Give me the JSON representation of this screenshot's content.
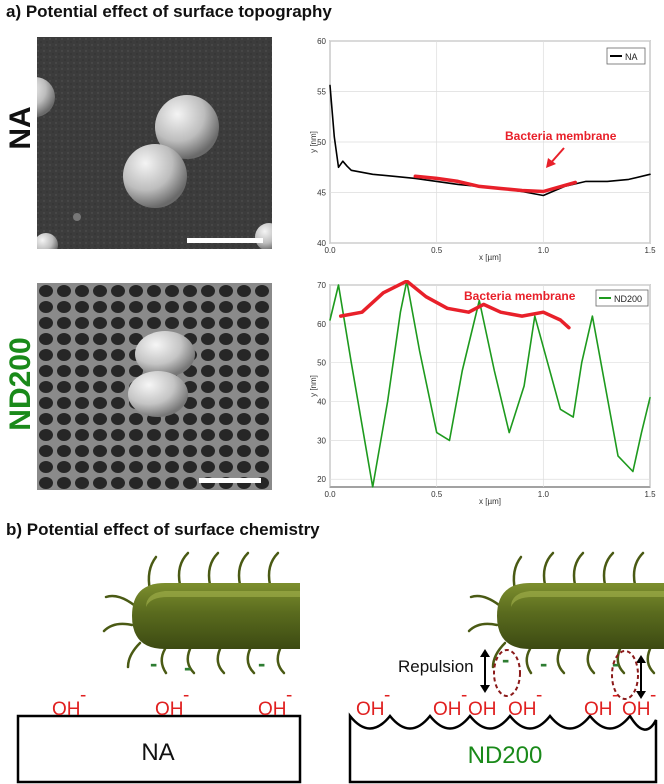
{
  "section_a": {
    "title": "a) Potential effect of surface topography"
  },
  "section_b": {
    "title": "b) Potential effect of surface chemistry"
  },
  "rows": [
    {
      "label": "NA",
      "color": "#111111"
    },
    {
      "label": "ND200",
      "color": "#1a8a1a"
    }
  ],
  "colors": {
    "profile_na": "#000000",
    "profile_nd200": "#1e9a1e",
    "membrane": "#e8202a",
    "bacteria": "#5a6b1e",
    "oh": "#e02020",
    "neg_charge": "#2e7d32"
  },
  "chart_data": [
    {
      "type": "line",
      "xlabel": "x [µm]",
      "ylabel": "y [nm]",
      "xlim": [
        0,
        1.5
      ],
      "ylim": [
        40,
        60
      ],
      "xticks": [
        "0.0",
        "0.5",
        "1.0",
        "1.5"
      ],
      "yticks": [
        "40",
        "45",
        "50",
        "55",
        "60"
      ],
      "legend": {
        "placement": "top-right",
        "entries": [
          "NA"
        ]
      },
      "annotation": "Bacteria membrane",
      "series": [
        {
          "name": "NA",
          "x": [
            0,
            0.02,
            0.04,
            0.06,
            0.08,
            0.1,
            0.15,
            0.2,
            0.3,
            0.4,
            0.5,
            0.6,
            0.7,
            0.8,
            0.9,
            1.0,
            1.1,
            1.2,
            1.3,
            1.4,
            1.5
          ],
          "y": [
            55.6,
            50.5,
            47.5,
            48.1,
            47.6,
            47.2,
            47.0,
            46.8,
            46.6,
            46.4,
            46.1,
            45.8,
            45.6,
            45.4,
            45.1,
            44.7,
            45.6,
            46.1,
            46.1,
            46.3,
            46.8
          ]
        },
        {
          "x": [
            0.4,
            0.5,
            0.6,
            0.7,
            0.8,
            0.9,
            1.0,
            1.1,
            1.15
          ],
          "y": [
            46.6,
            46.4,
            46.1,
            45.6,
            45.4,
            45.2,
            45.1,
            45.7,
            46.0
          ]
        }
      ]
    },
    {
      "type": "line",
      "xlabel": "x [µm]",
      "ylabel": "y [nm]",
      "xlim": [
        0,
        1.5
      ],
      "ylim": [
        18,
        70
      ],
      "xticks": [
        "0.0",
        "0.5",
        "1.0",
        "1.5"
      ],
      "yticks": [
        "20",
        "30",
        "40",
        "50",
        "60",
        "70"
      ],
      "legend": {
        "placement": "top-right",
        "entries": [
          "ND200"
        ]
      },
      "annotation": "Bacteria membrane",
      "series": [
        {
          "name": "ND200",
          "x": [
            0,
            0.04,
            0.1,
            0.2,
            0.27,
            0.33,
            0.36,
            0.42,
            0.5,
            0.56,
            0.62,
            0.7,
            0.77,
            0.84,
            0.91,
            0.96,
            1.02,
            1.08,
            1.14,
            1.18,
            1.23,
            1.29,
            1.35,
            1.42,
            1.46,
            1.5
          ],
          "y": [
            61,
            70,
            50,
            18,
            40,
            63,
            71,
            53,
            32,
            30,
            48,
            66,
            48,
            32,
            44,
            62,
            50,
            38,
            36,
            50,
            62,
            44,
            26,
            22,
            32,
            41
          ]
        },
        {
          "x": [
            0.05,
            0.15,
            0.25,
            0.36,
            0.45,
            0.55,
            0.65,
            0.72,
            0.8,
            0.9,
            1.0,
            1.08,
            1.12
          ],
          "y": [
            62,
            63,
            68,
            71,
            67,
            64,
            63,
            65,
            63,
            62,
            63,
            61,
            59
          ]
        }
      ]
    }
  ],
  "diagram": {
    "left": {
      "box_label": "NA",
      "oh_labels": [
        "OH",
        "OH",
        "OH"
      ],
      "charge": "-",
      "neg_charges": [
        "-",
        "-",
        "-"
      ]
    },
    "right": {
      "box_label": "ND200",
      "oh_labels": [
        "OH",
        "OH",
        "OH",
        "OH",
        "OH",
        "OH"
      ],
      "charge": "-",
      "neg_charges": [
        "-",
        "-",
        "-"
      ],
      "repulsion_label": "Repulsion"
    }
  }
}
